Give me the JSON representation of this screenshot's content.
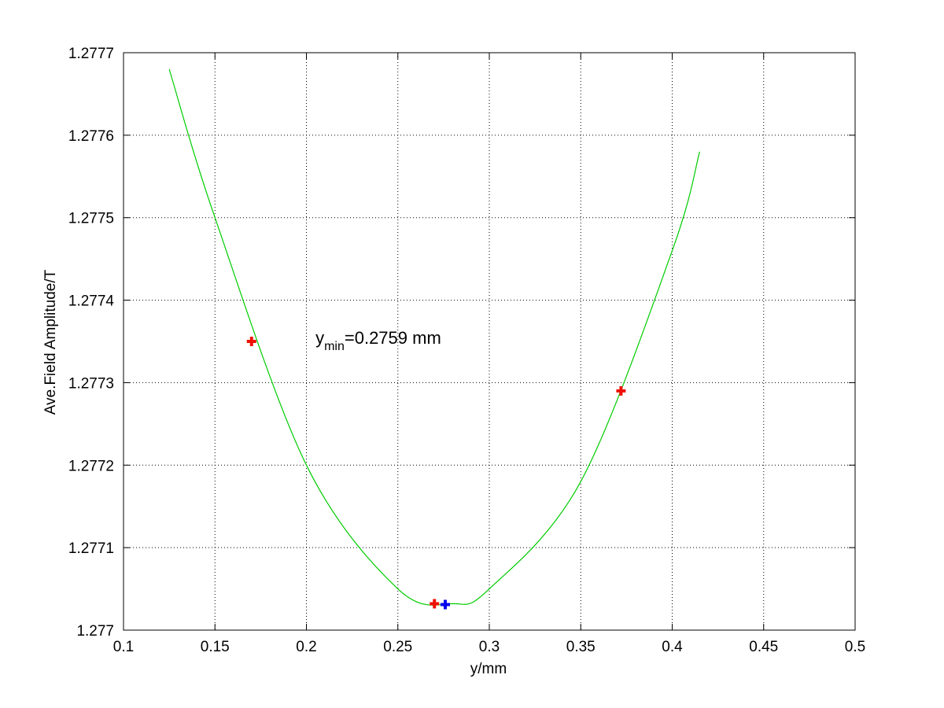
{
  "chart_data": {
    "type": "scatter",
    "xlabel": "y/mm",
    "ylabel": "Ave.Field Amplitude/T",
    "xlim": [
      0.1,
      0.5
    ],
    "ylim": [
      1.277,
      1.2777
    ],
    "x_ticks": [
      "0.1",
      "0.15",
      "0.2",
      "0.25",
      "0.3",
      "0.35",
      "0.4",
      "0.45",
      "0.5"
    ],
    "x_tick_values": [
      0.1,
      0.15,
      0.2,
      0.25,
      0.3,
      0.35,
      0.4,
      0.45,
      0.5
    ],
    "y_ticks": [
      "1.277",
      "1.2771",
      "1.2772",
      "1.2773",
      "1.2774",
      "1.2775",
      "1.2776",
      "1.2777"
    ],
    "y_tick_values": [
      1.277,
      1.2771,
      1.2772,
      1.2773,
      1.2774,
      1.2775,
      1.2776,
      1.2777
    ],
    "grid": true,
    "grid_style": "dotted",
    "annotation": {
      "base": "y",
      "subscript": "min",
      "text": "=0.2759 mm",
      "x": 0.205,
      "y": 1.27735
    },
    "series": [
      {
        "kind": "fit-curve",
        "color": "#00cc00",
        "x_range": [
          0.125,
          0.415
        ],
        "vertex": [
          0.28,
          1.277032
        ],
        "x": [
          0.125,
          0.15,
          0.2,
          0.25,
          0.28,
          0.3,
          0.35,
          0.4,
          0.415
        ],
        "y": [
          1.27768,
          1.2775,
          1.2772,
          1.27705,
          1.277032,
          1.27705,
          1.27718,
          1.27746,
          1.27758
        ]
      },
      {
        "kind": "measured-points",
        "color": "#ee1100",
        "marker": "plus",
        "x": [
          0.17,
          0.27,
          0.372
        ],
        "y": [
          1.27735,
          1.277032,
          1.27729
        ]
      },
      {
        "kind": "minimum-point",
        "color": "#0000ee",
        "marker": "plus",
        "x": [
          0.2759
        ],
        "y": [
          1.277031
        ]
      }
    ]
  }
}
